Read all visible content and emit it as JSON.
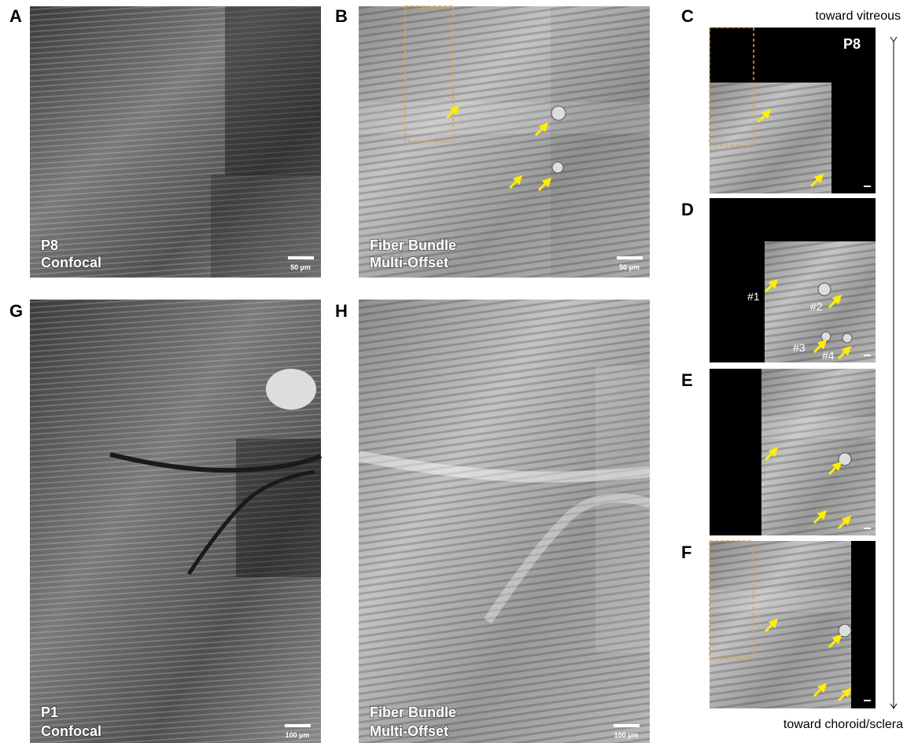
{
  "panels": [
    {
      "letter": "A",
      "labels": [
        "P8",
        "Confocal"
      ],
      "scale_bar": "50 µm"
    },
    {
      "letter": "B",
      "labels": [
        "Fiber Bundle",
        "Multi-Offset"
      ],
      "scale_bar": "50 µm"
    },
    {
      "letter": "C",
      "labels": [
        "P8"
      ]
    },
    {
      "letter": "D",
      "labels": [
        "#1",
        "#2",
        "#3",
        "#4"
      ]
    },
    {
      "letter": "E"
    },
    {
      "letter": "F"
    },
    {
      "letter": "G",
      "labels": [
        "P1",
        "Confocal"
      ],
      "scale_bar": "100 µm"
    },
    {
      "letter": "H",
      "labels": [
        "Fiber Bundle",
        "Multi-Offset"
      ],
      "scale_bar": "100 µm"
    }
  ],
  "orientation": {
    "top": "toward vitreous",
    "bottom": "toward choroid/sclera"
  }
}
